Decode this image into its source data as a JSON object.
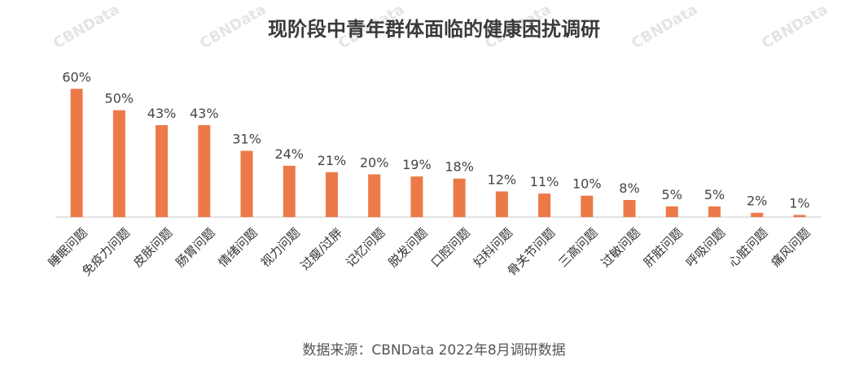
{
  "chart_data": {
    "type": "bar",
    "title": "现阶段中青年群体面临的健康困扰调研",
    "source": "数据来源：CBNData 2022年8月调研数据",
    "watermark": "CBNData",
    "categories": [
      "睡眠问题",
      "免疫力问题",
      "皮肤问题",
      "肠胃问题",
      "情绪问题",
      "视力问题",
      "过瘦/过胖",
      "记忆问题",
      "脱发问题",
      "口腔问题",
      "妇科问题",
      "骨关节问题",
      "三高问题",
      "过敏问题",
      "肝脏问题",
      "呼吸问题",
      "心脏问题",
      "痛风问题"
    ],
    "values": [
      60,
      50,
      43,
      43,
      31,
      24,
      21,
      20,
      19,
      18,
      12,
      11,
      10,
      8,
      5,
      5,
      2,
      1
    ],
    "value_suffix": "%",
    "ylim": [
      0,
      62
    ],
    "grid": false,
    "legend": "none",
    "bar_color": "#ec7a48",
    "baseline_color": "#d9d9d9"
  }
}
